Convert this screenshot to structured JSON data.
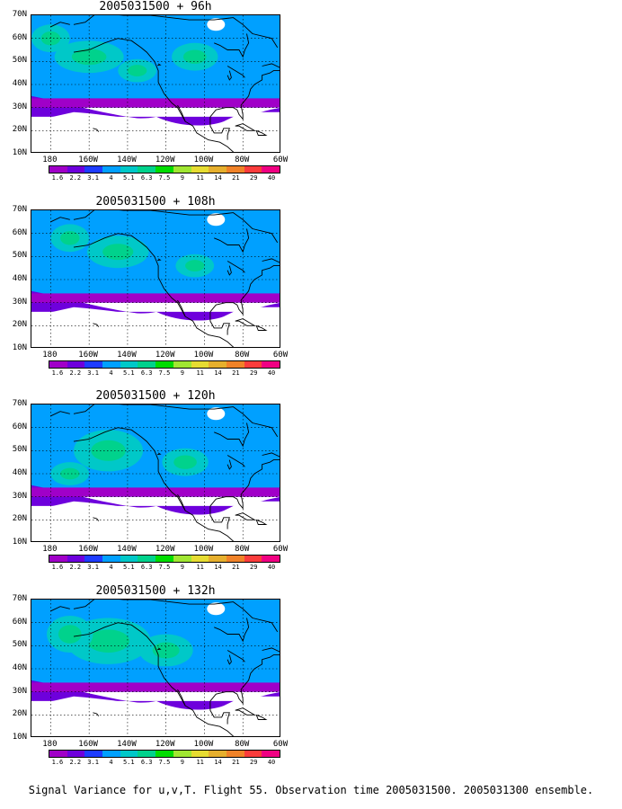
{
  "panels": [
    {
      "title": "2005031500 + 96h"
    },
    {
      "title": "2005031500 + 108h"
    },
    {
      "title": "2005031500 + 120h"
    },
    {
      "title": "2005031500 + 132h"
    }
  ],
  "lat_labels": [
    "70N",
    "60N",
    "50N",
    "40N",
    "30N",
    "20N",
    "10N"
  ],
  "lon_labels": [
    "180",
    "160W",
    "140W",
    "120W",
    "100W",
    "80W",
    "60W"
  ],
  "colorbar": {
    "labels": [
      "1.6",
      "2.2",
      "3.1",
      "4",
      "5.1",
      "6.3",
      "7.5",
      "9",
      "11",
      "14",
      "21",
      "29",
      "40"
    ],
    "colors": [
      "#a000c8",
      "#6e00dc",
      "#1e3cff",
      "#00a0ff",
      "#00c8c8",
      "#00d28c",
      "#00dc00",
      "#a0e632",
      "#e6dc32",
      "#e6af2d",
      "#f08228",
      "#fa3c3c",
      "#f00082"
    ]
  },
  "footer": "Signal Variance for u,v,T. Flight 55. Observation time 2005031500. 2005031300 ensemble."
}
